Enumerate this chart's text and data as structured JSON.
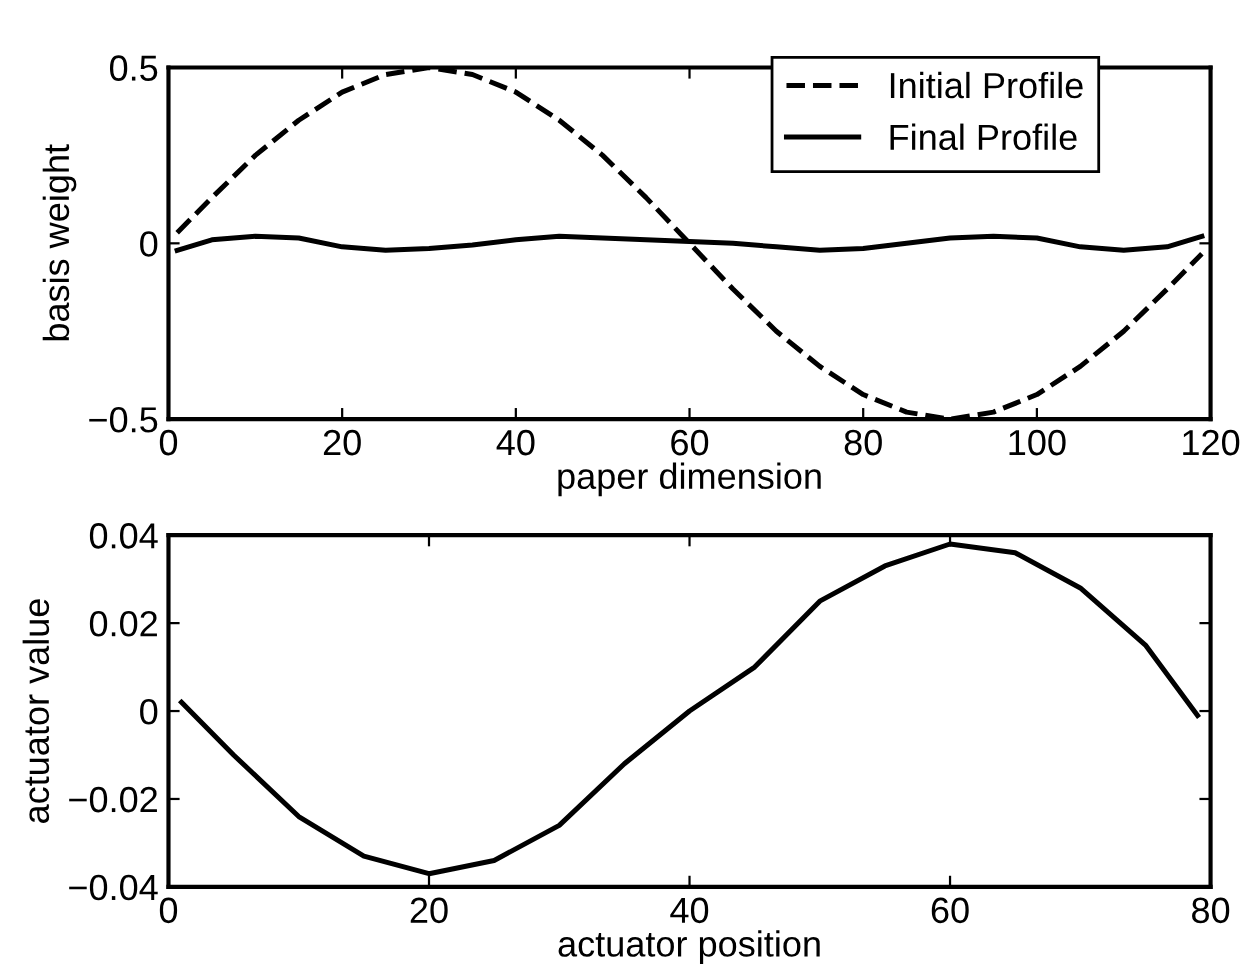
{
  "chart_data": [
    {
      "type": "line",
      "xlabel": "paper dimension",
      "ylabel": "basis weight",
      "xlim": [
        0,
        120
      ],
      "ylim": [
        -0.5,
        0.5
      ],
      "xticks": [
        0,
        20,
        40,
        60,
        80,
        100,
        120
      ],
      "yticks": [
        -0.5,
        0,
        0.5
      ],
      "legend": "top right",
      "grid": false,
      "x": [
        1,
        5,
        10,
        15,
        20,
        25,
        30,
        35,
        40,
        45,
        50,
        55,
        60,
        65,
        70,
        75,
        80,
        85,
        90,
        95,
        100,
        105,
        110,
        115,
        119
      ],
      "series": [
        {
          "name": "Initial Profile",
          "color": "#000000",
          "line_style": "dashed",
          "values": [
            0.03,
            0.13,
            0.25,
            0.35,
            0.43,
            0.48,
            0.5,
            0.48,
            0.43,
            0.35,
            0.25,
            0.13,
            0,
            -0.13,
            -0.25,
            -0.35,
            -0.43,
            -0.48,
            -0.5,
            -0.48,
            -0.43,
            -0.35,
            -0.25,
            -0.13,
            -0.03
          ]
        },
        {
          "name": "Final Profile",
          "color": "#000000",
          "line_style": "solid",
          "values": [
            -0.02,
            0.01,
            0.02,
            0.015,
            -0.01,
            -0.02,
            -0.015,
            -0.005,
            0.01,
            0.02,
            0.015,
            0.01,
            0.005,
            0,
            -0.01,
            -0.02,
            -0.015,
            0,
            0.015,
            0.02,
            0.015,
            -0.01,
            -0.02,
            -0.01,
            0.02
          ]
        }
      ]
    },
    {
      "type": "line",
      "xlabel": "actuator position",
      "ylabel": "actuator value",
      "xlim": [
        0,
        80
      ],
      "ylim": [
        -0.04,
        0.04
      ],
      "xticks": [
        0,
        20,
        40,
        60,
        80
      ],
      "yticks": [
        -0.04,
        -0.02,
        0,
        0.02,
        0.04
      ],
      "grid": false,
      "x": [
        1,
        5,
        10,
        15,
        20,
        25,
        30,
        35,
        40,
        45,
        50,
        55,
        60,
        65,
        70,
        75,
        79
      ],
      "series": [
        {
          "color": "#000000",
          "line_style": "solid",
          "values": [
            0.002,
            -0.01,
            -0.024,
            -0.033,
            -0.037,
            -0.034,
            -0.026,
            -0.012,
            0,
            0.01,
            0.025,
            0.033,
            0.038,
            0.036,
            0.028,
            0.015,
            -0.001
          ]
        }
      ]
    }
  ]
}
